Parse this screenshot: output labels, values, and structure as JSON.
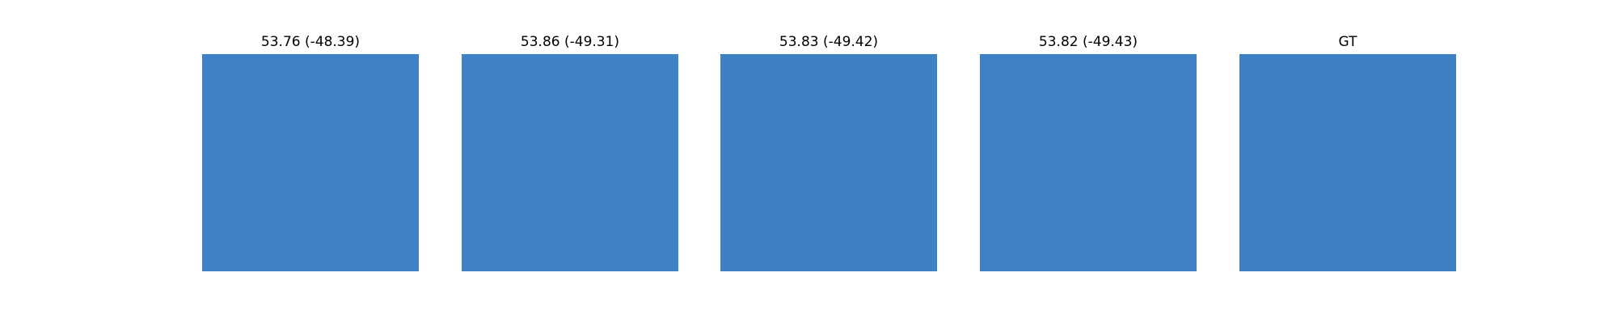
{
  "figure": {
    "panels": [
      {
        "title": "53.76 (-48.39)",
        "color": "#3f81c4"
      },
      {
        "title": "53.86 (-49.31)",
        "color": "#3f82c5"
      },
      {
        "title": "53.83 (-49.42)",
        "color": "#3e81c3"
      },
      {
        "title": "53.82 (-49.43)",
        "color": "#3f81c4"
      },
      {
        "title": "GT",
        "color": "#3d80c3"
      }
    ]
  }
}
